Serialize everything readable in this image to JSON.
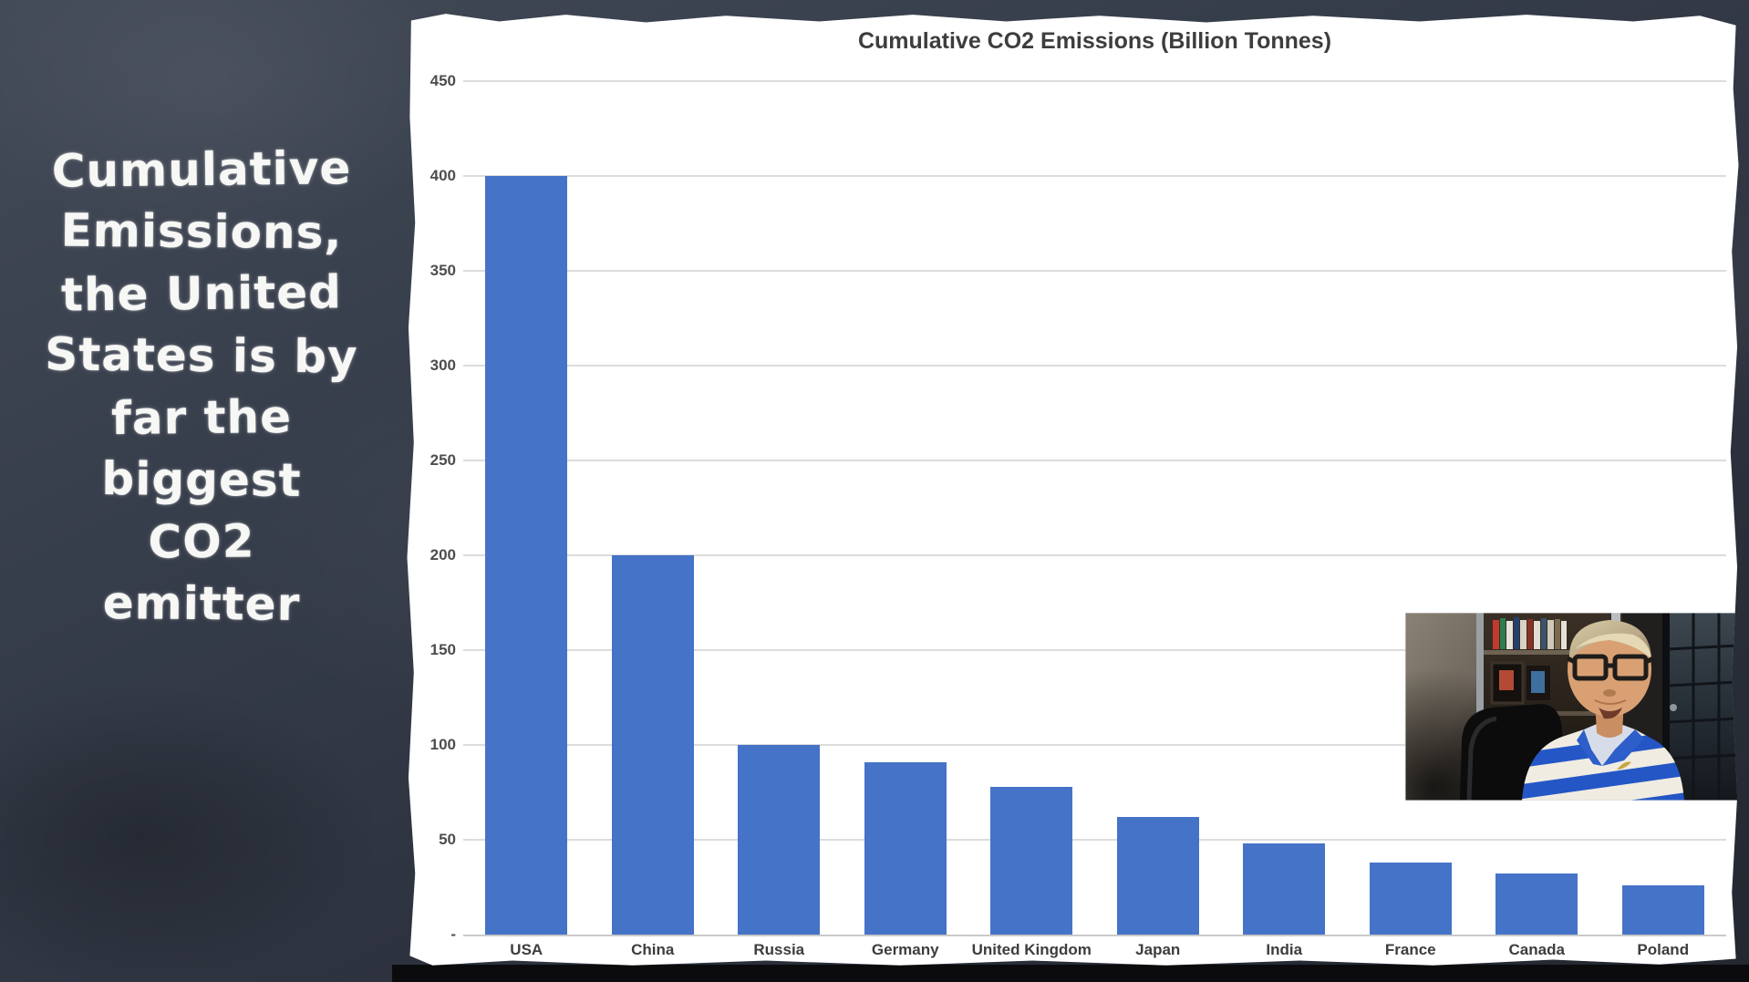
{
  "left_panel": {
    "lines": [
      "Cumulative",
      "Emissions,",
      "the United",
      "States is by",
      "far the",
      "biggest",
      "CO2",
      "emitter"
    ]
  },
  "chart": {
    "title": "Cumulative CO2 Emissions (Billion Tonnes)"
  },
  "chart_data": {
    "type": "bar",
    "title": "Cumulative CO2 Emissions (Billion Tonnes)",
    "categories": [
      "USA",
      "China",
      "Russia",
      "Germany",
      "United Kingdom",
      "Japan",
      "India",
      "France",
      "Canada",
      "Poland"
    ],
    "values": [
      400,
      200,
      100,
      91,
      78,
      62,
      48,
      38,
      32,
      26
    ],
    "xlabel": "",
    "ylabel": "",
    "ylim": [
      0,
      450
    ],
    "ytick_interval": 50,
    "ytick_labels": [
      "450",
      "400",
      "350",
      "300",
      "250",
      "200",
      "150",
      "100",
      "50",
      "-"
    ],
    "grid": true,
    "legend": false,
    "bar_color": "#4573c7"
  },
  "colors": {
    "bar": "#4573c7",
    "gridline": "#dcdcdc",
    "chalkboard": "#363d4a",
    "panel": "#ffffff",
    "chalk_text": "#f7f7f5",
    "axis_text": "#4d4d4d"
  }
}
